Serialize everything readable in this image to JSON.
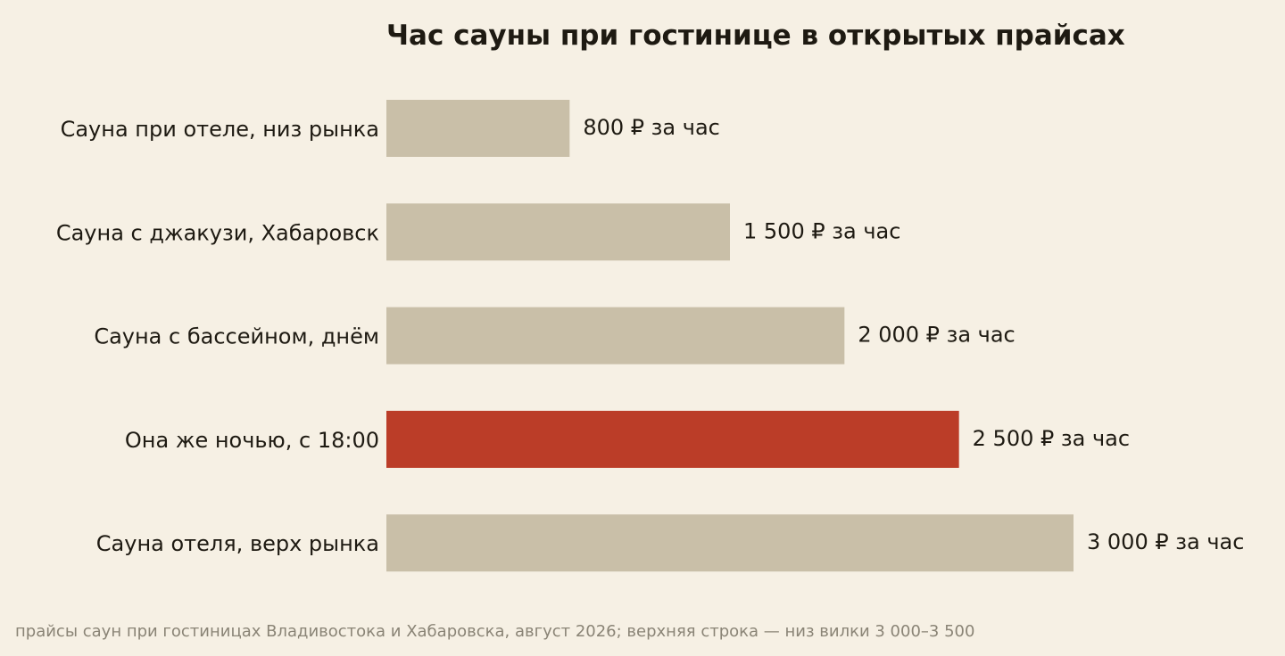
{
  "chart_data": {
    "type": "bar",
    "orientation": "horizontal",
    "title": "Час сауны при гостинице в открытых прайсах",
    "xlabel": "",
    "ylabel": "",
    "grid": false,
    "categories": [
      "Сауна при отеле, низ рынка",
      "Сауна с джакузи, Хабаровск",
      "Сауна с бассейном, днём",
      "Она же ночью, с 18:00",
      "Сауна отеля, верх рынка"
    ],
    "values": [
      800,
      1500,
      2000,
      2500,
      3000
    ],
    "value_labels": [
      "800 ₽ за час",
      "1 500 ₽ за час",
      "2 000 ₽ за час",
      "2 500 ₽ за час",
      "3 000 ₽ за час"
    ],
    "highlight_index": 3,
    "xlim": [
      0,
      3000
    ],
    "colors": {
      "bar": "#c9bfa8",
      "highlight": "#bb3d28",
      "background": "#f6f0e4"
    },
    "source": "прайсы саун при гостиницах Владивостока и Хабаровска, август 2026; верхняя строка — низ вилки 3 000–3 500"
  }
}
